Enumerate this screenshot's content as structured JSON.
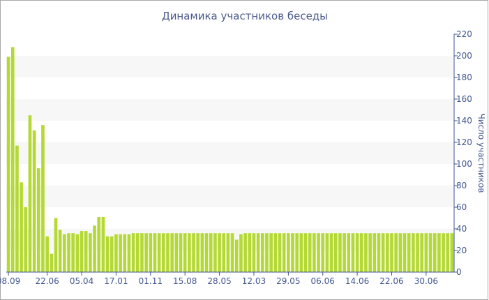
{
  "chart_data": {
    "type": "bar",
    "title": "Динамика участников беседы",
    "ylabel": "Число участников",
    "xlabel": "",
    "ylim": [
      0,
      220
    ],
    "y_ticks": [
      0,
      20,
      40,
      60,
      80,
      100,
      120,
      140,
      160,
      180,
      200,
      220
    ],
    "x_tick_labels": [
      {
        "label": "08.09",
        "index": 0
      },
      {
        "label": "22.06",
        "index": 9
      },
      {
        "label": "05.04",
        "index": 17
      },
      {
        "label": "17.01",
        "index": 25
      },
      {
        "label": "01.11",
        "index": 33
      },
      {
        "label": "15.08",
        "index": 41
      },
      {
        "label": "28.05",
        "index": 49
      },
      {
        "label": "12.03",
        "index": 57
      },
      {
        "label": "29.05",
        "index": 65
      },
      {
        "label": "06.06",
        "index": 73
      },
      {
        "label": "14.06",
        "index": 81
      },
      {
        "label": "22.06",
        "index": 89
      },
      {
        "label": "30.06",
        "index": 97
      }
    ],
    "values": [
      199,
      208,
      117,
      83,
      60,
      145,
      131,
      96,
      136,
      33,
      17,
      50,
      39,
      35,
      36,
      36,
      35,
      38,
      38,
      36,
      43,
      51,
      51,
      33,
      33,
      35,
      35,
      35,
      35,
      36,
      36,
      36,
      36,
      36,
      36,
      36,
      36,
      36,
      36,
      36,
      36,
      36,
      36,
      36,
      36,
      36,
      36,
      36,
      36,
      36,
      36,
      36,
      36,
      30,
      35,
      36,
      36,
      36,
      36,
      36,
      36,
      36,
      36,
      36,
      36,
      36,
      36,
      36,
      36,
      36,
      36,
      36,
      36,
      36,
      36,
      36,
      36,
      36,
      36,
      36,
      36,
      36,
      36,
      36,
      36,
      36,
      36,
      36,
      36,
      36,
      36,
      36,
      36,
      36,
      36,
      36,
      36,
      36,
      36,
      36,
      36,
      36,
      36,
      36
    ],
    "colors": {
      "bar": "#b5d934",
      "band": "#f7f7f7",
      "axis": "#3f5690",
      "text": "#3f5690"
    },
    "grid": "alternating horizontal bands",
    "y_axis_side": "right"
  }
}
